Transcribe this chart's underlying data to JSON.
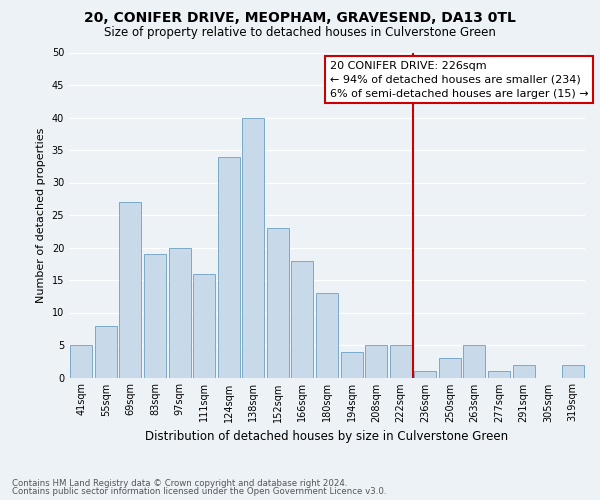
{
  "title": "20, CONIFER DRIVE, MEOPHAM, GRAVESEND, DA13 0TL",
  "subtitle": "Size of property relative to detached houses in Culverstone Green",
  "xlabel": "Distribution of detached houses by size in Culverstone Green",
  "ylabel": "Number of detached properties",
  "bin_labels": [
    "41sqm",
    "55sqm",
    "69sqm",
    "83sqm",
    "97sqm",
    "111sqm",
    "124sqm",
    "138sqm",
    "152sqm",
    "166sqm",
    "180sqm",
    "194sqm",
    "208sqm",
    "222sqm",
    "236sqm",
    "250sqm",
    "263sqm",
    "277sqm",
    "291sqm",
    "305sqm",
    "319sqm"
  ],
  "bar_heights": [
    5,
    8,
    27,
    19,
    20,
    16,
    34,
    40,
    23,
    18,
    13,
    4,
    5,
    5,
    1,
    3,
    5,
    1,
    2,
    0,
    2
  ],
  "bar_color": "#c8daea",
  "bar_edge_color": "#7aaac8",
  "vline_x": 13.5,
  "vline_color": "#cc0000",
  "annotation_title": "20 CONIFER DRIVE: 226sqm",
  "annotation_line1": "← 94% of detached houses are smaller (234)",
  "annotation_line2": "6% of semi-detached houses are larger (15) →",
  "annotation_box_color": "#ffffff",
  "annotation_box_edge": "#cc0000",
  "ylim": [
    0,
    50
  ],
  "yticks": [
    0,
    5,
    10,
    15,
    20,
    25,
    30,
    35,
    40,
    45,
    50
  ],
  "footnote1": "Contains HM Land Registry data © Crown copyright and database right 2024.",
  "footnote2": "Contains public sector information licensed under the Open Government Licence v3.0.",
  "bg_color": "#edf2f7",
  "grid_color": "#ffffff",
  "title_fontsize": 10,
  "subtitle_fontsize": 8.5,
  "ylabel_fontsize": 8,
  "xlabel_fontsize": 8.5,
  "tick_fontsize": 7,
  "annotation_fontsize": 8
}
